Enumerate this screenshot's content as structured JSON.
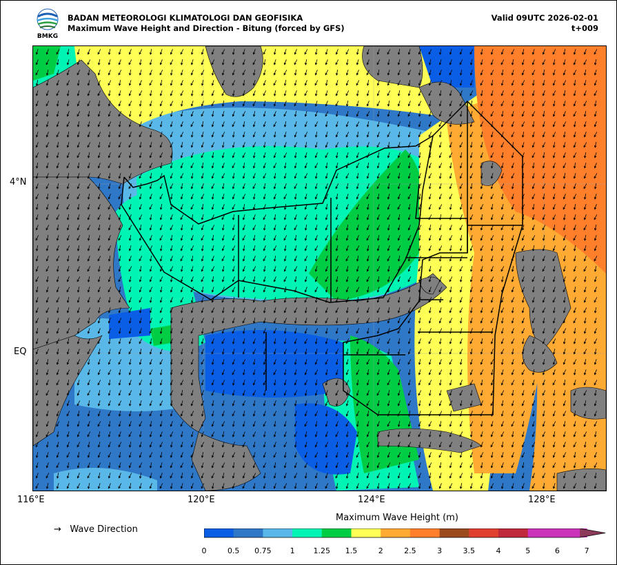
{
  "header": {
    "agency": "BADAN METEOROLOGI KLIMATOLOGI DAN GEOFISIKA",
    "product": "Maximum Wave Height and Direction - Bitung (forced by GFS)",
    "valid": "Valid 09UTC 2026-02-01",
    "lead": "t+009",
    "logo_text": "BMKG"
  },
  "axes": {
    "lat_labels": [
      "4°N",
      "EQ"
    ],
    "lon_labels": [
      "116°E",
      "120°E",
      "124°E",
      "128°E"
    ]
  },
  "legend": {
    "title": "Maximum Wave Height (m)",
    "wave_direction_label": "Wave Direction",
    "arrow_symbol": "→",
    "tick_labels": [
      "0",
      "0.5",
      "0.75",
      "1",
      "1.25",
      "1.5",
      "2",
      "2.5",
      "3",
      "3.5",
      "4",
      "5",
      "6",
      "7"
    ],
    "colors": [
      "#0a5ee6",
      "#2f78c8",
      "#5ab8e8",
      "#00f5b4",
      "#00cc44",
      "#ffff55",
      "#ffaa33",
      "#ff7f2a",
      "#9b4a1e",
      "#e04030",
      "#c0283c",
      "#cc33bb",
      "#cc33bb",
      "#8b3a5a"
    ]
  },
  "colors": {
    "land": "#808080",
    "boundary": "#000000"
  }
}
